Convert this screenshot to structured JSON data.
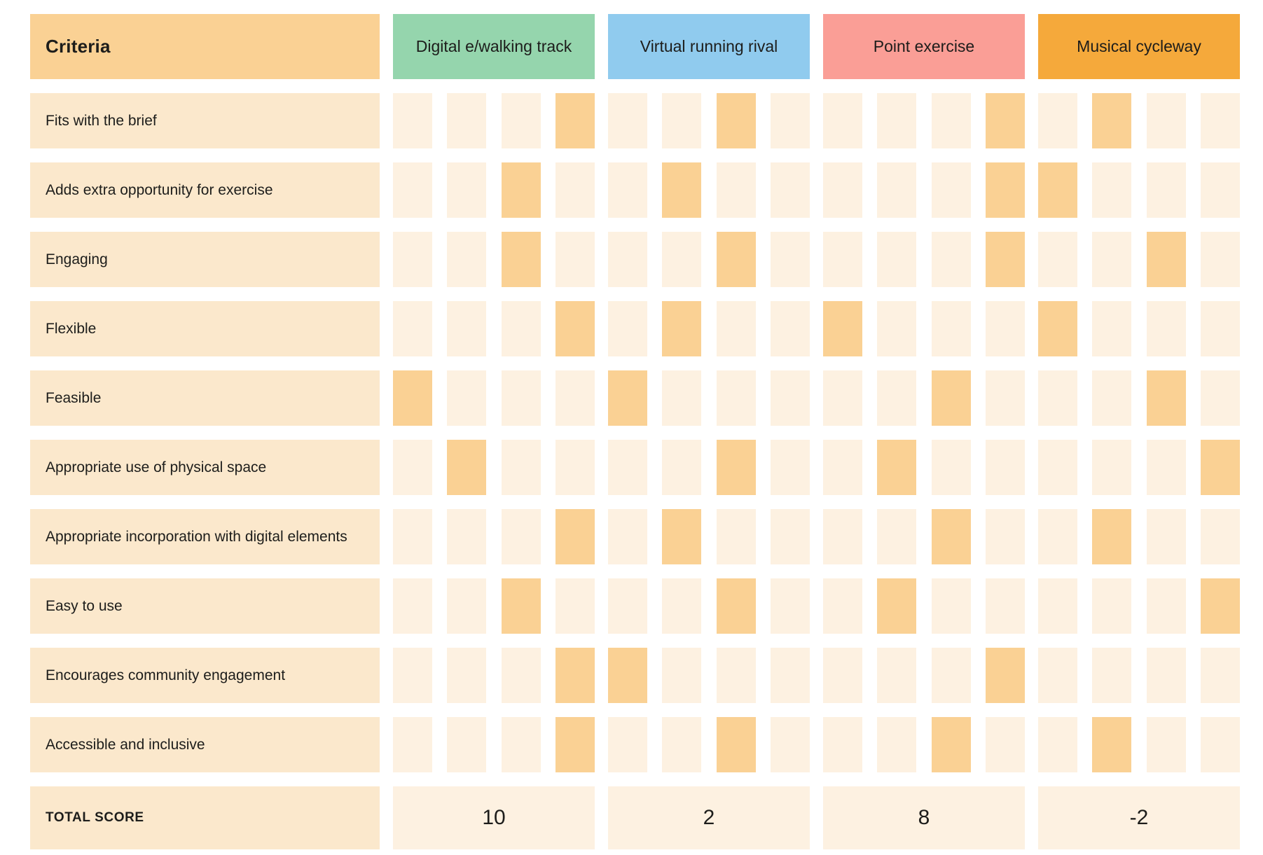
{
  "chart_data": {
    "type": "table",
    "criteria_header": "Criteria",
    "options": [
      {
        "label": "Digital e/walking track",
        "color": "#95d5ad"
      },
      {
        "label": "Virtual running rival",
        "color": "#90cbee"
      },
      {
        "label": "Point exercise",
        "color": "#fa9e96"
      },
      {
        "label": "Musical cycleway",
        "color": "#f5a93b"
      }
    ],
    "cells_per_option": 4,
    "rows": [
      {
        "label": "Fits with the brief",
        "selected": [
          4,
          3,
          4,
          2
        ]
      },
      {
        "label": "Adds extra opportunity for exercise",
        "selected": [
          3,
          2,
          4,
          1
        ]
      },
      {
        "label": "Engaging",
        "selected": [
          3,
          3,
          4,
          3
        ]
      },
      {
        "label": "Flexible",
        "selected": [
          4,
          2,
          1,
          1
        ]
      },
      {
        "label": "Feasible",
        "selected": [
          1,
          1,
          3,
          3
        ]
      },
      {
        "label": "Appropriate use of physical space",
        "selected": [
          2,
          3,
          2,
          4
        ]
      },
      {
        "label": "Appropriate incorporation with digital elements",
        "selected": [
          4,
          2,
          3,
          2
        ]
      },
      {
        "label": "Easy to use",
        "selected": [
          3,
          3,
          2,
          4
        ]
      },
      {
        "label": "Encourages community engagement",
        "selected": [
          4,
          1,
          4,
          null
        ]
      },
      {
        "label": "Accessible and inclusive",
        "selected": [
          4,
          3,
          3,
          2
        ]
      }
    ],
    "total_row": {
      "label": "TOTAL SCORE",
      "values": [
        "10",
        "2",
        "8",
        "-2"
      ]
    }
  },
  "colors": {
    "criteria_header_bg": "#fad194",
    "row_label_bg": "#fbe8cc",
    "cell_bg": "#fdf1e1",
    "cell_highlight": "#fad194",
    "text": "#1d1d1b",
    "background": "#ffffff"
  }
}
